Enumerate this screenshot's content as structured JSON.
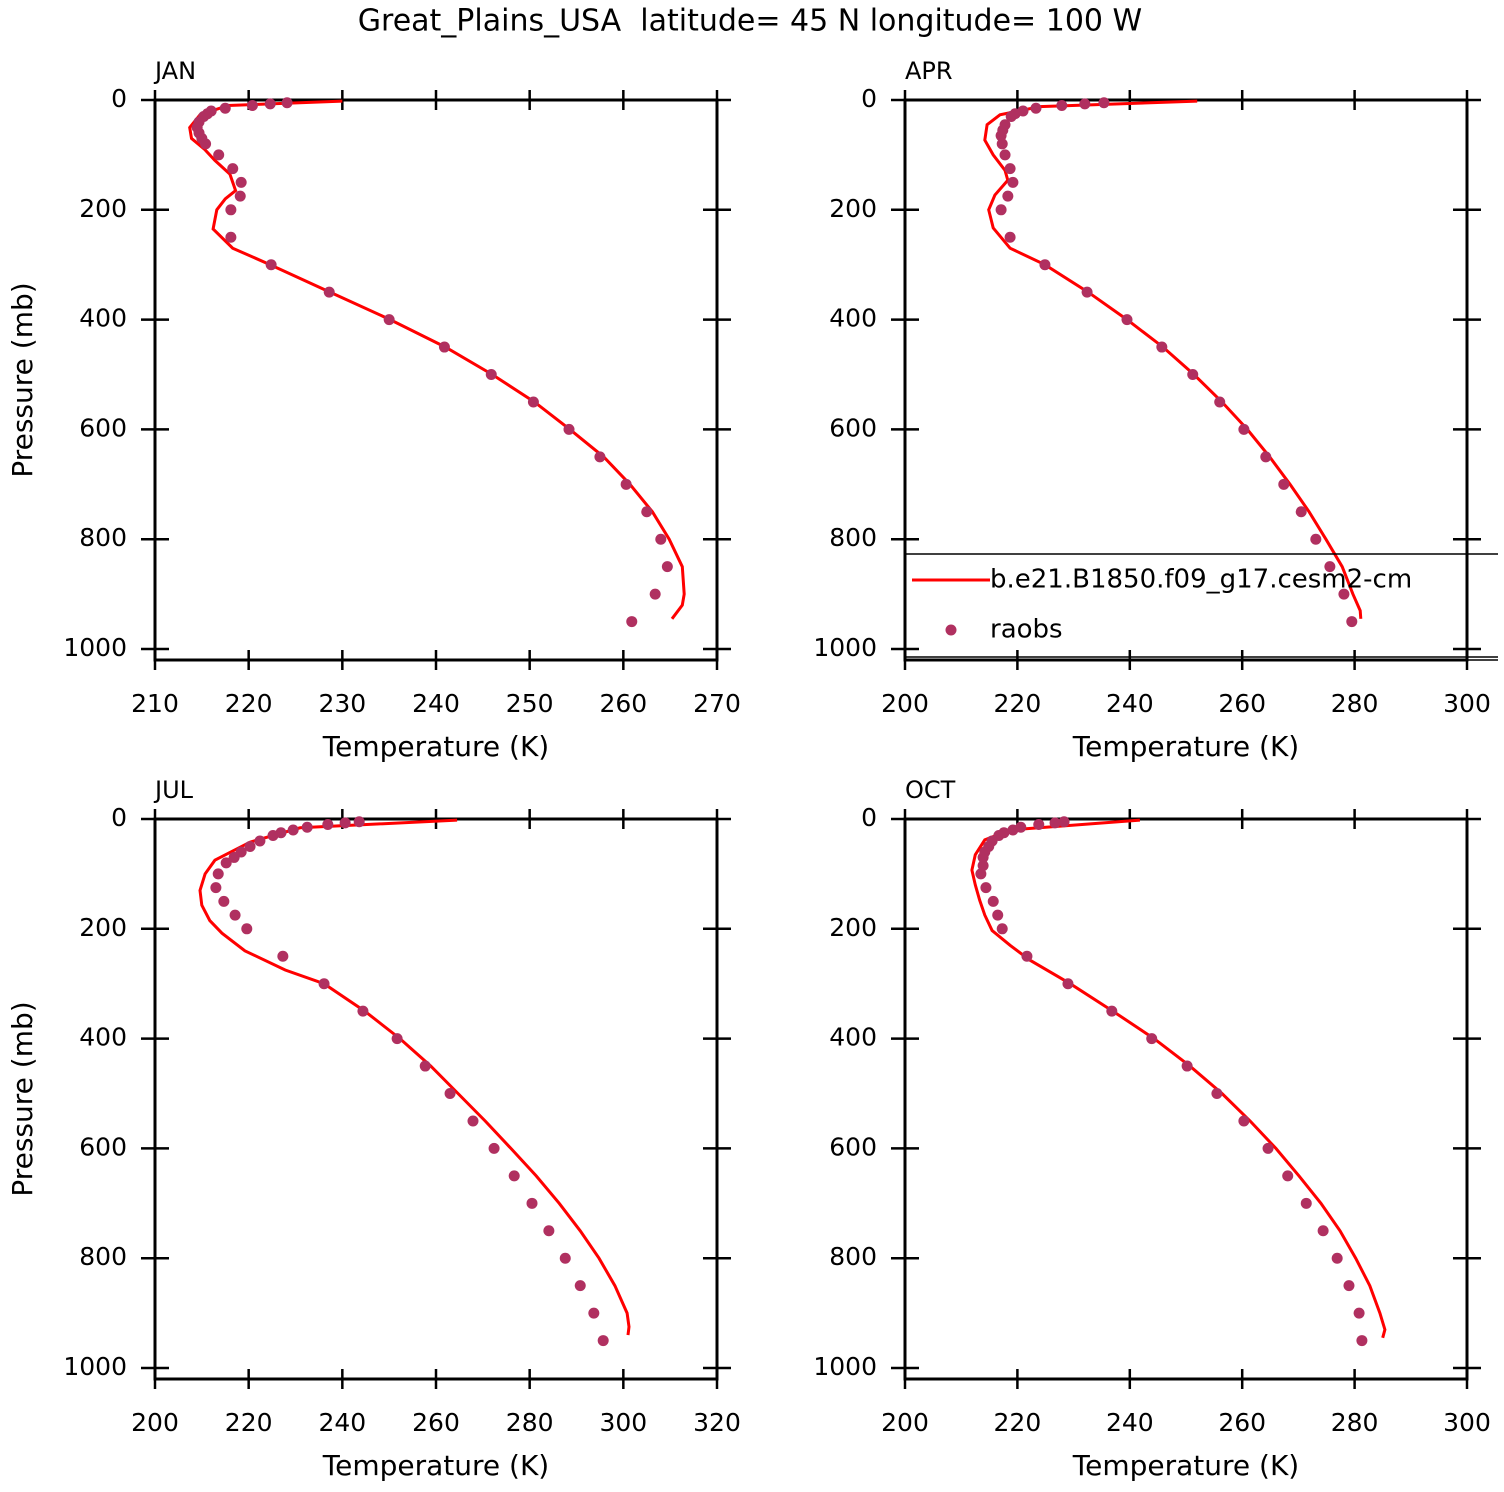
{
  "title": "Great_Plains_USA  latitude= 45 N longitude= 100 W",
  "chart_data": [
    {
      "type": "line",
      "title": "JAN",
      "xlabel": "Temperature (K)",
      "ylabel": "Pressure (mb)",
      "xlim": [
        210,
        270
      ],
      "xticks": [
        210,
        220,
        230,
        240,
        250,
        260,
        270
      ],
      "ylim": [
        0,
        1020
      ],
      "yticks": [
        0,
        200,
        400,
        600,
        800,
        1000
      ],
      "yreverse": true,
      "series": [
        {
          "type": "line",
          "color": "#ff0000",
          "x": [
            230,
            217.8,
            214.8,
            213.7,
            213.9,
            215.3,
            216.4,
            218,
            218.6,
            217.5,
            216.6,
            216.2,
            218.3,
            222.3,
            228.7,
            235.1,
            241,
            246,
            250.5,
            254.3,
            257.9,
            260.7,
            263.1,
            264.9,
            266.3,
            266.5,
            266.3,
            265.2
          ],
          "values": [
            2,
            10,
            27,
            50,
            70,
            90,
            110,
            135,
            165,
            180,
            200,
            235,
            270,
            300,
            350,
            400,
            450,
            500,
            550,
            600,
            650,
            700,
            750,
            800,
            850,
            900,
            920,
            945
          ]
        },
        {
          "type": "scatter",
          "color": "#b03060",
          "x": [
            224.1,
            222.3,
            220.4,
            217.5,
            216,
            215.6,
            215.2,
            214.7,
            214.5,
            214.7,
            215,
            215.4,
            216.8,
            218.3,
            219.2,
            219.1,
            218.1,
            218.1,
            222.4,
            228.6,
            235,
            240.9,
            245.9,
            250.4,
            254.2,
            257.5,
            260.3,
            262.5,
            264,
            264.7,
            263.4,
            260.9
          ],
          "values": [
            5,
            7,
            10,
            15,
            20,
            25,
            30,
            40,
            50,
            60,
            70,
            80,
            100,
            125,
            150,
            175,
            200,
            250,
            300,
            350,
            400,
            450,
            500,
            550,
            600,
            650,
            700,
            750,
            800,
            850,
            900,
            950
          ]
        }
      ]
    },
    {
      "type": "line",
      "title": "APR",
      "xlabel": "Temperature (K)",
      "xlim": [
        200,
        300
      ],
      "xticks": [
        200,
        220,
        240,
        260,
        280,
        300
      ],
      "ylim": [
        0,
        1020
      ],
      "yticks": [
        0,
        200,
        400,
        600,
        800,
        1000
      ],
      "yreverse": true,
      "legend": "bottom",
      "series": [
        {
          "type": "line",
          "name": "b.e21.B1850.f09_g17.cesm2-cm",
          "color": "#ff0000",
          "x": [
            252,
            224,
            216.9,
            214.6,
            214.2,
            215.7,
            217.8,
            218.3,
            216,
            214.9,
            215.7,
            218.7,
            224.9,
            232.6,
            239.5,
            245.9,
            251.4,
            256.4,
            260.9,
            264.9,
            268.5,
            271.9,
            274.9,
            277.8,
            279.7,
            281,
            281.1
          ],
          "values": [
            2,
            12,
            27,
            45,
            73,
            100,
            128,
            146,
            173,
            200,
            233,
            270,
            300,
            350,
            400,
            450,
            500,
            550,
            600,
            650,
            700,
            750,
            800,
            850,
            900,
            930,
            945
          ]
        },
        {
          "type": "scatter",
          "name": "raobs",
          "color": "#b03060",
          "x": [
            235.4,
            232,
            227.9,
            223.3,
            221,
            219.6,
            218.9,
            217.8,
            217.4,
            217.1,
            217.3,
            217.8,
            218.7,
            219.2,
            218.3,
            217.1,
            218.7,
            224.9,
            232.4,
            239.5,
            245.7,
            251.2,
            256,
            260.3,
            264.2,
            267.4,
            270.5,
            273.1,
            275.6,
            278.1,
            279.5
          ],
          "values": [
            5,
            7,
            10,
            15,
            20,
            25,
            30,
            45,
            55,
            65,
            80,
            100,
            125,
            150,
            175,
            200,
            250,
            300,
            350,
            400,
            450,
            500,
            550,
            600,
            650,
            700,
            750,
            800,
            850,
            900,
            950
          ]
        }
      ]
    },
    {
      "type": "line",
      "title": "JUL",
      "xlabel": "Temperature (K)",
      "ylabel": "Pressure (mb)",
      "xlim": [
        200,
        320
      ],
      "xticks": [
        200,
        220,
        240,
        260,
        280,
        300,
        320
      ],
      "ylim": [
        0,
        1020
      ],
      "yticks": [
        0,
        200,
        400,
        600,
        800,
        1000
      ],
      "yreverse": true,
      "series": [
        {
          "type": "line",
          "color": "#ff0000",
          "x": [
            264.5,
            231,
            220.3,
            212.8,
            210.7,
            209.6,
            210,
            211.7,
            214.3,
            219.2,
            227.8,
            236.1,
            244.8,
            252.3,
            258.9,
            264.7,
            270.5,
            276,
            281.4,
            286.3,
            290.8,
            294.8,
            298.2,
            300.8,
            301.2,
            301
          ],
          "values": [
            2,
            16,
            42,
            75,
            100,
            130,
            157,
            185,
            208,
            240,
            275,
            300,
            350,
            400,
            450,
            500,
            550,
            600,
            650,
            700,
            750,
            800,
            850,
            900,
            925,
            940
          ]
        },
        {
          "type": "scatter",
          "color": "#b03060",
          "x": [
            243.6,
            240.6,
            236.9,
            232.5,
            229.5,
            226.9,
            225.2,
            222.4,
            220.3,
            218.4,
            216.9,
            215.2,
            213.5,
            213,
            214.7,
            217.1,
            219.6,
            227.3,
            236.1,
            244.4,
            251.7,
            257.7,
            263,
            267.9,
            272.4,
            276.7,
            280.5,
            284.1,
            287.6,
            290.8,
            293.7,
            295.7
          ],
          "values": [
            5,
            7,
            10,
            15,
            20,
            25,
            30,
            40,
            50,
            60,
            70,
            80,
            100,
            125,
            150,
            175,
            200,
            250,
            300,
            350,
            400,
            450,
            500,
            550,
            600,
            650,
            700,
            750,
            800,
            850,
            900,
            950
          ]
        }
      ]
    },
    {
      "type": "line",
      "title": "OCT",
      "xlabel": "Temperature (K)",
      "xlim": [
        200,
        300
      ],
      "xticks": [
        200,
        220,
        240,
        260,
        280,
        300
      ],
      "ylim": [
        0,
        1020
      ],
      "yticks": [
        0,
        200,
        400,
        600,
        800,
        1000
      ],
      "yreverse": true,
      "series": [
        {
          "type": "line",
          "color": "#ff0000",
          "x": [
            241.8,
            218.7,
            214.2,
            212.5,
            211.9,
            212.5,
            213.3,
            214.2,
            215.5,
            218.7,
            222.2,
            229.4,
            237,
            244.3,
            250.7,
            256.4,
            261.4,
            266,
            270.1,
            274,
            277.4,
            280.2,
            282.7,
            284.5,
            285.4,
            285
          ],
          "values": [
            2,
            20,
            38,
            65,
            93,
            120,
            148,
            175,
            203,
            230,
            257,
            300,
            350,
            400,
            450,
            500,
            550,
            600,
            650,
            700,
            750,
            800,
            850,
            900,
            930,
            945
          ]
        },
        {
          "type": "scatter",
          "color": "#b03060",
          "x": [
            228.3,
            226.7,
            223.8,
            220.6,
            219.2,
            217.6,
            216.7,
            215.5,
            214.9,
            214.2,
            213.9,
            213.9,
            213.5,
            214.4,
            215.7,
            216.5,
            217.3,
            221.7,
            229,
            236.8,
            243.9,
            250.2,
            255.5,
            260.3,
            264.6,
            268.1,
            271.4,
            274.4,
            276.9,
            279,
            280.8,
            281.3
          ],
          "values": [
            5,
            7,
            10,
            15,
            20,
            25,
            30,
            40,
            50,
            60,
            70,
            85,
            100,
            125,
            150,
            175,
            200,
            250,
            300,
            350,
            400,
            450,
            500,
            550,
            600,
            650,
            700,
            750,
            800,
            850,
            900,
            950
          ]
        }
      ]
    }
  ]
}
